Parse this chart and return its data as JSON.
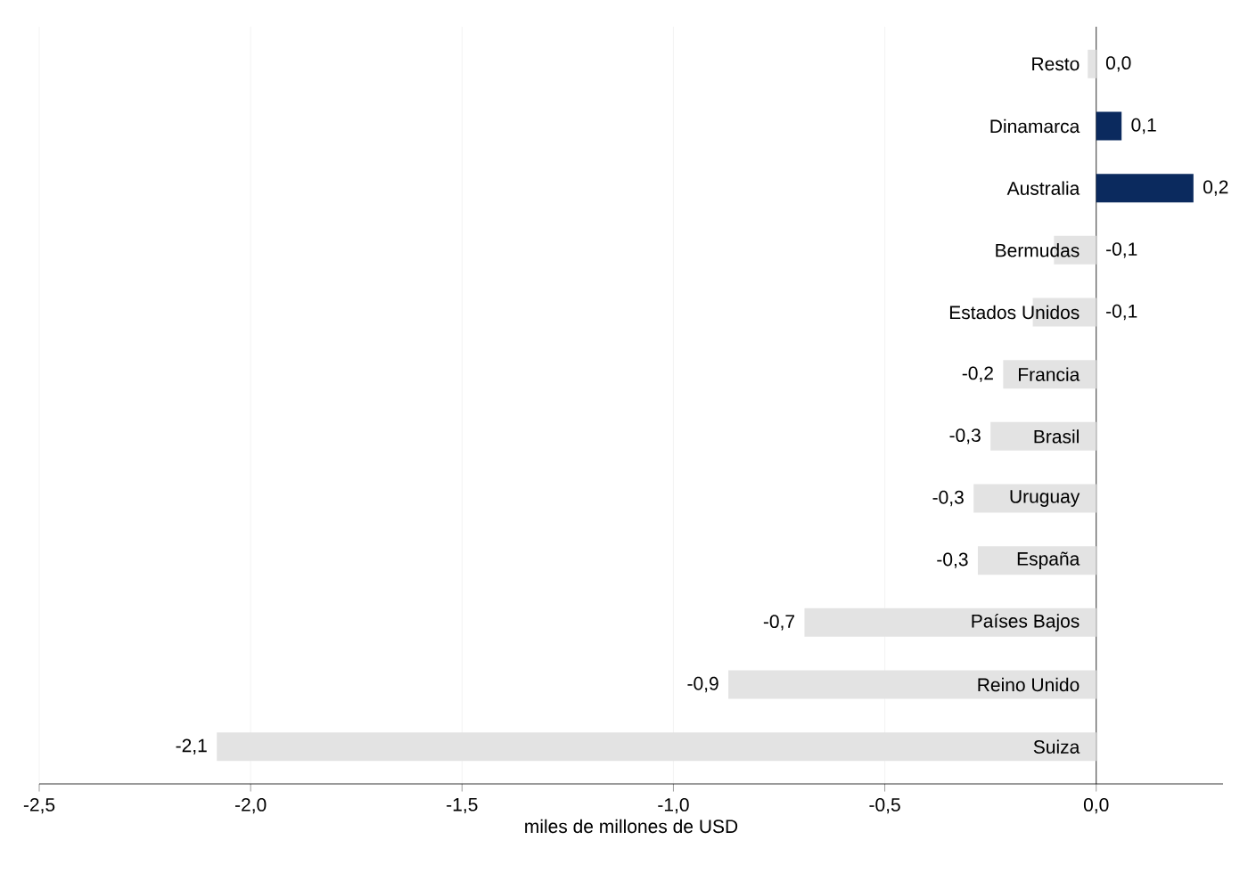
{
  "chart_data": {
    "type": "bar",
    "orientation": "horizontal",
    "categories": [
      "Resto",
      "Dinamarca",
      "Australia",
      "Bermudas",
      "Estados Unidos",
      "Francia",
      "Brasil",
      "Uruguay",
      "España",
      "Países Bajos",
      "Reino Unido",
      "Suiza"
    ],
    "values": [
      -0.02,
      0.06,
      0.23,
      -0.1,
      -0.15,
      -0.22,
      -0.25,
      -0.29,
      -0.28,
      -0.69,
      -0.87,
      -2.08
    ],
    "colors": [
      "#e3e3e3",
      "#0b2a5e",
      "#0b2a5e",
      "#e3e3e3",
      "#e3e3e3",
      "#e3e3e3",
      "#e3e3e3",
      "#e3e3e3",
      "#e3e3e3",
      "#e3e3e3",
      "#e3e3e3",
      "#e3e3e3"
    ],
    "value_labels": [
      "0,0",
      "0,1",
      "0,2",
      "-0,1",
      "-0,1",
      "-0,2",
      "-0,3",
      "-0,3",
      "-0,3",
      "-0,7",
      "-0,9",
      "-2,1"
    ],
    "xlim": [
      -2.5,
      0.3
    ],
    "xticks": [
      {
        "value": -2.5,
        "label": "-2,5"
      },
      {
        "value": -2.0,
        "label": "-2,0"
      },
      {
        "value": -1.5,
        "label": "-1,5"
      },
      {
        "value": -1.0,
        "label": "-1,0"
      },
      {
        "value": -0.5,
        "label": "-0,5"
      },
      {
        "value": 0.0,
        "label": "0,0"
      }
    ],
    "xlabel": "miles de millones de USD",
    "grid": "x"
  }
}
